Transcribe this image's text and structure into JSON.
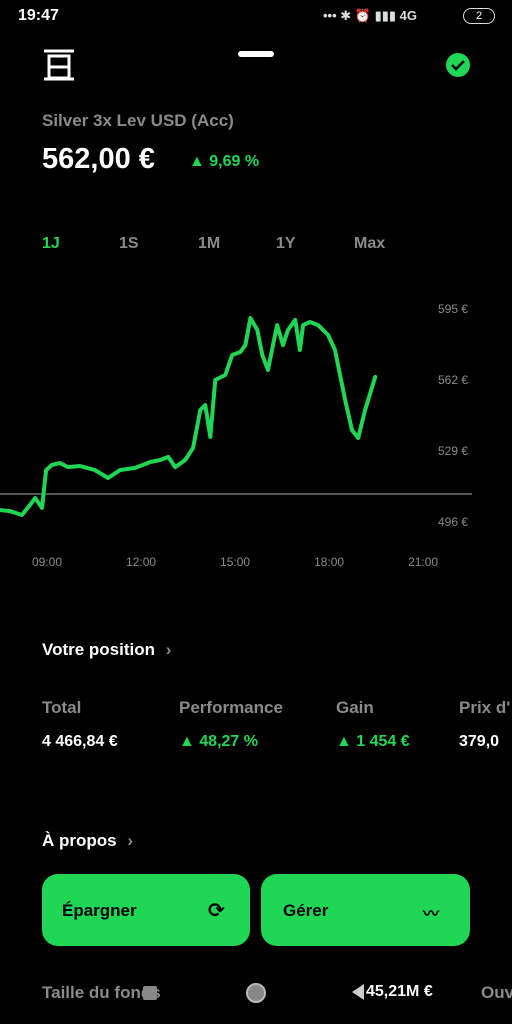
{
  "status_bar": {
    "time": "19:47",
    "network": "4G",
    "battery": "2"
  },
  "header": {
    "name": "Silver 3x Lev USD (Acc)",
    "price": "562,00 €",
    "change": "9,69 %"
  },
  "tabs": [
    "1J",
    "1S",
    "1M",
    "1Y",
    "Max"
  ],
  "chart_data": {
    "type": "line",
    "color": "#1fd655",
    "x": [
      7.5,
      7.82,
      8.2,
      8.46,
      8.62,
      8.84,
      8.97,
      9.16,
      9.41,
      9.67,
      10.05,
      10.53,
      10.95,
      11.33,
      11.81,
      12.29,
      12.61,
      12.87,
      13.09,
      13.41,
      13.66,
      13.89,
      14.05,
      14.21,
      14.37,
      14.69,
      14.91,
      15.17,
      15.33,
      15.49,
      15.71,
      15.87,
      16.05,
      16.18,
      16.34,
      16.53,
      16.69,
      16.92,
      17.07,
      17.17,
      17.39,
      17.65,
      17.97,
      18.19,
      18.51,
      18.73,
      18.93,
      19.15,
      19.47
    ],
    "values": [
      502.0,
      501.6,
      499.7,
      504.4,
      507.6,
      503.0,
      520.6,
      523.0,
      523.9,
      522.0,
      522.5,
      520.6,
      516.9,
      520.6,
      521.6,
      524.3,
      525.3,
      526.7,
      522.0,
      525.3,
      530.9,
      548.5,
      550.8,
      536.0,
      562.5,
      564.8,
      574.1,
      575.5,
      578.7,
      591.3,
      585.7,
      574.1,
      567.1,
      576.4,
      588.0,
      578.7,
      585.7,
      590.4,
      576.4,
      588.0,
      589.4,
      588.0,
      583.4,
      576.4,
      553.2,
      539.2,
      535.5,
      548.5,
      563.9
    ],
    "reference_line": 509.5,
    "xlim": [
      7.5,
      22.56
    ],
    "ylim": [
      496,
      595
    ],
    "xticks": [
      {
        "value": 9,
        "label": "09:00"
      },
      {
        "value": 12,
        "label": "12:00"
      },
      {
        "value": 15,
        "label": "15:00"
      },
      {
        "value": 18,
        "label": "18:00"
      },
      {
        "value": 21,
        "label": "21:00"
      }
    ],
    "yticks": [
      {
        "value": 595,
        "label": "595 €"
      },
      {
        "value": 562,
        "label": "562 €"
      },
      {
        "value": 529,
        "label": "529 €"
      },
      {
        "value": 496,
        "label": "496 €"
      }
    ]
  },
  "position": {
    "title": "Votre position",
    "stats": [
      {
        "label": "Total",
        "value": "4 466,84 €"
      },
      {
        "label": "Performance",
        "value": "48,27 %"
      },
      {
        "label": "Gain",
        "value": "1 454 €"
      },
      {
        "label": "Prix d'",
        "value": "379,0"
      }
    ]
  },
  "about": {
    "title": "À propos"
  },
  "buttons": [
    "Épargner",
    "Gérer"
  ],
  "details": [
    {
      "label": "Taille du fonds",
      "value": "45,21M €"
    },
    {
      "label": "Ouv"
    }
  ]
}
